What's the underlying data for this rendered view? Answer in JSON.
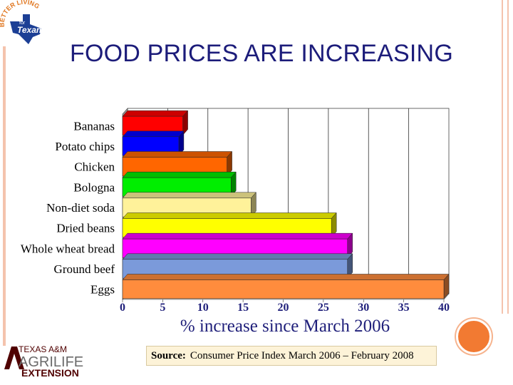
{
  "slide": {
    "title": "FOOD PRICES ARE INCREASING",
    "source_label": "Source:",
    "source_text": "Consumer Price Index March 2006 – February 2008"
  },
  "logos": {
    "top_ring_text": "BETTER LIVING",
    "top_small": "for",
    "top_main": "Texans",
    "bottom_line1": "TEXAS A&M",
    "bottom_line2": "AGRILIFE",
    "bottom_line3": "EXTENSION"
  },
  "colors": {
    "title": "#1c1c7a",
    "accent_orange": "#f27a32",
    "deco_line": "#f4c3ad"
  },
  "chart_data": {
    "type": "bar",
    "orientation": "horizontal",
    "style": "3d",
    "categories": [
      "Bananas",
      "Potato chips",
      "Chicken",
      "Bologna",
      "Non-diet soda",
      "Dried beans",
      "Whole wheat bread",
      "Ground beef",
      "Eggs"
    ],
    "values": [
      7.5,
      7,
      13,
      13.5,
      16,
      26,
      28,
      28,
      40
    ],
    "colors": [
      "#ff0000",
      "#0000ff",
      "#ff6600",
      "#00ee00",
      "#fff29a",
      "#ffff00",
      "#ff00ff",
      "#7b9ada",
      "#ff8c3d"
    ],
    "xlabel": "% increase since March 2006",
    "xlim": [
      0,
      40
    ],
    "xticks": [
      "0",
      "5",
      "10",
      "15",
      "20",
      "25",
      "30",
      "35",
      "40"
    ],
    "grid": true
  }
}
